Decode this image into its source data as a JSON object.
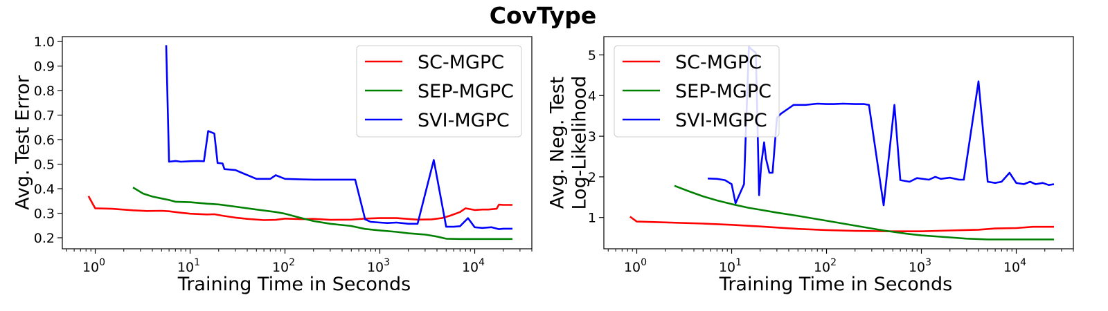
{
  "title": "CovType",
  "chart_data": [
    {
      "type": "line",
      "xscale": "log",
      "xlabel": "Training Time in Seconds",
      "ylabel": [
        "Avg. Test Error"
      ],
      "xlim": [
        0.45,
        40000
      ],
      "ylim": [
        0.155,
        1.02
      ],
      "xticks": [
        1,
        10,
        100,
        1000,
        10000
      ],
      "xtick_labels": [
        [
          "10",
          "0"
        ],
        [
          "10",
          "1"
        ],
        [
          "10",
          "2"
        ],
        [
          "10",
          "3"
        ],
        [
          "10",
          "4"
        ]
      ],
      "yticks": [
        0.2,
        0.3,
        0.4,
        0.5,
        0.6,
        0.7,
        0.8,
        0.9,
        1.0
      ],
      "ytick_labels": [
        "0.2",
        "0.3",
        "0.4",
        "0.5",
        "0.6",
        "0.7",
        "0.8",
        "0.9",
        "1.0"
      ],
      "legend": "top-right",
      "series": [
        {
          "name": "SC-MGPC",
          "color": "#ff0000",
          "x": [
            0.85,
            0.95,
            1.0,
            1.5,
            2.5,
            3.5,
            5,
            6,
            8,
            10,
            15,
            18,
            22,
            30,
            40,
            60,
            80,
            100,
            150,
            200,
            300,
            500,
            700,
            1000,
            1500,
            2500,
            3500,
            4500,
            5500,
            7000,
            8000,
            10000,
            12000,
            14000,
            17000,
            18000,
            20000,
            25000
          ],
          "y": [
            0.37,
            0.335,
            0.32,
            0.318,
            0.312,
            0.309,
            0.31,
            0.308,
            0.302,
            0.298,
            0.295,
            0.296,
            0.29,
            0.282,
            0.277,
            0.272,
            0.273,
            0.278,
            0.276,
            0.277,
            0.273,
            0.274,
            0.278,
            0.28,
            0.28,
            0.274,
            0.275,
            0.28,
            0.29,
            0.305,
            0.32,
            0.313,
            0.315,
            0.315,
            0.318,
            0.335,
            0.334,
            0.334
          ]
        },
        {
          "name": "SEP-MGPC",
          "color": "#008000",
          "x": [
            2.5,
            3.2,
            4,
            5,
            6,
            7,
            10,
            15,
            20,
            30,
            50,
            80,
            100,
            150,
            200,
            300,
            500,
            700,
            1000,
            1500,
            2000,
            3000,
            4000,
            5000,
            7000,
            10000,
            15000,
            25000
          ],
          "y": [
            0.405,
            0.38,
            0.368,
            0.36,
            0.354,
            0.347,
            0.345,
            0.339,
            0.336,
            0.327,
            0.315,
            0.305,
            0.298,
            0.28,
            0.268,
            0.257,
            0.248,
            0.236,
            0.23,
            0.224,
            0.218,
            0.213,
            0.205,
            0.196,
            0.195,
            0.195,
            0.195,
            0.195
          ]
        },
        {
          "name": "SVI-MGPC",
          "color": "#0000ff",
          "x": [
            5.6,
            6.0,
            7.0,
            8.0,
            10,
            12,
            14,
            15.5,
            18,
            19.5,
            22,
            23,
            30,
            35,
            50,
            60,
            70,
            80,
            100,
            150,
            200,
            300,
            400,
            550,
            700,
            800,
            1000,
            1200,
            1500,
            2000,
            2500,
            3700,
            5000,
            6000,
            7000,
            8500,
            10000,
            12000,
            15000,
            18000,
            20000,
            25000
          ],
          "y": [
            0.985,
            0.51,
            0.513,
            0.51,
            0.512,
            0.513,
            0.512,
            0.635,
            0.625,
            0.505,
            0.503,
            0.48,
            0.476,
            0.465,
            0.44,
            0.44,
            0.44,
            0.455,
            0.44,
            0.438,
            0.437,
            0.437,
            0.437,
            0.437,
            0.275,
            0.265,
            0.262,
            0.26,
            0.262,
            0.257,
            0.257,
            0.517,
            0.245,
            0.245,
            0.247,
            0.28,
            0.243,
            0.24,
            0.243,
            0.235,
            0.237,
            0.237
          ]
        }
      ]
    },
    {
      "type": "line",
      "xscale": "log",
      "xlabel": "Training Time in Seconds",
      "ylabel": [
        "Avg. Neg. Test",
        "Log-Likelihood"
      ],
      "xlim": [
        0.45,
        40000
      ],
      "ylim": [
        0.23,
        5.45
      ],
      "xticks": [
        1,
        10,
        100,
        1000,
        10000
      ],
      "xtick_labels": [
        [
          "10",
          "0"
        ],
        [
          "10",
          "1"
        ],
        [
          "10",
          "2"
        ],
        [
          "10",
          "3"
        ],
        [
          "10",
          "4"
        ]
      ],
      "yticks": [
        1,
        2,
        3,
        4,
        5
      ],
      "ytick_labels": [
        "1",
        "2",
        "3",
        "4",
        "5"
      ],
      "legend": "top-left",
      "series": [
        {
          "name": "SC-MGPC",
          "color": "#ff0000",
          "x": [
            0.85,
            1.0,
            2,
            5,
            10,
            20,
            50,
            100,
            200,
            500,
            1000,
            2000,
            4000,
            6000,
            10000,
            15000,
            25000
          ],
          "y": [
            1.02,
            0.9,
            0.88,
            0.85,
            0.82,
            0.78,
            0.72,
            0.69,
            0.67,
            0.66,
            0.66,
            0.68,
            0.7,
            0.73,
            0.74,
            0.77,
            0.77
          ]
        },
        {
          "name": "SEP-MGPC",
          "color": "#008000",
          "x": [
            2.5,
            3.5,
            5,
            7,
            10,
            15,
            20,
            30,
            50,
            100,
            200,
            400,
            700,
            1000,
            2000,
            3000,
            5000,
            10000,
            25000
          ],
          "y": [
            1.78,
            1.65,
            1.52,
            1.42,
            1.33,
            1.24,
            1.19,
            1.12,
            1.04,
            0.92,
            0.8,
            0.68,
            0.6,
            0.56,
            0.51,
            0.48,
            0.46,
            0.46,
            0.46
          ]
        },
        {
          "name": "SVI-MGPC",
          "color": "#0000ff",
          "x": [
            5.6,
            7,
            8.5,
            10,
            11,
            13.5,
            15.2,
            16,
            18,
            19.5,
            20.5,
            22,
            23,
            25,
            27,
            30,
            33,
            45,
            60,
            80,
            100,
            120,
            150,
            200,
            250,
            280,
            400,
            520,
            600,
            750,
            900,
            1200,
            1400,
            1600,
            2000,
            2500,
            2800,
            4000,
            5000,
            6000,
            7000,
            8500,
            10000,
            12000,
            14000,
            16000,
            19000,
            22000,
            25000
          ],
          "y": [
            1.96,
            1.95,
            1.92,
            1.82,
            1.35,
            1.82,
            5.2,
            5.15,
            5.05,
            1.55,
            2.3,
            2.85,
            2.45,
            2.1,
            2.1,
            3.45,
            3.55,
            3.77,
            3.77,
            3.8,
            3.79,
            3.79,
            3.8,
            3.79,
            3.79,
            3.77,
            1.3,
            3.77,
            1.92,
            1.88,
            1.97,
            1.93,
            2.0,
            1.95,
            1.98,
            1.93,
            1.93,
            4.35,
            1.88,
            1.85,
            1.88,
            2.1,
            1.85,
            1.82,
            1.88,
            1.82,
            1.85,
            1.8,
            1.82
          ]
        }
      ]
    }
  ]
}
